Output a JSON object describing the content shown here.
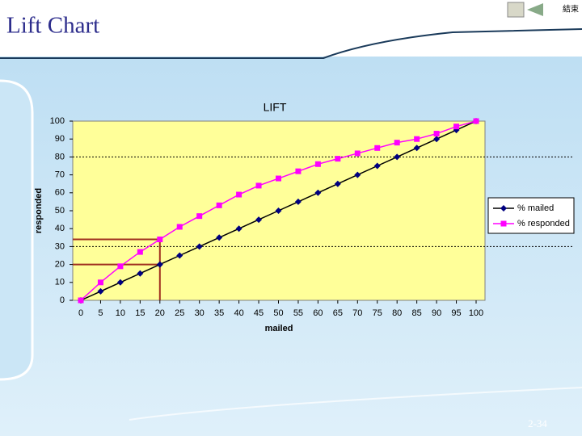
{
  "slide": {
    "title": "Lift Chart",
    "page": "2-34",
    "button": "結束"
  },
  "chart_data": {
    "type": "line",
    "title": "LIFT",
    "x_label": "mailed",
    "y_label": "responded",
    "x": [
      0,
      5,
      10,
      15,
      20,
      25,
      30,
      35,
      40,
      45,
      50,
      55,
      60,
      65,
      70,
      75,
      80,
      85,
      90,
      95,
      100
    ],
    "series": [
      {
        "name": "% mailed",
        "color": "#000080",
        "marker": "diamond",
        "values": [
          0,
          5,
          10,
          15,
          20,
          25,
          30,
          35,
          40,
          45,
          50,
          55,
          60,
          65,
          70,
          75,
          80,
          85,
          90,
          95,
          100
        ]
      },
      {
        "name": "% responded",
        "color": "#ff00ff",
        "marker": "square",
        "values": [
          0,
          10,
          19,
          27,
          34,
          41,
          47,
          53,
          59,
          64,
          68,
          72,
          76,
          79,
          82,
          85,
          88,
          90,
          93,
          97,
          100
        ]
      }
    ],
    "xlim": [
      0,
      100
    ],
    "xticks": [
      0,
      5,
      10,
      15,
      20,
      25,
      30,
      35,
      40,
      45,
      50,
      55,
      60,
      65,
      70,
      75,
      80,
      85,
      90,
      95,
      100
    ],
    "ylim": [
      0,
      100
    ],
    "yticks": [
      0,
      10,
      20,
      30,
      40,
      50,
      60,
      70,
      80,
      90,
      100
    ],
    "reference_lines": [
      30,
      80
    ],
    "guide": {
      "x": 20,
      "y": [
        20,
        34
      ],
      "color": "#a03020"
    },
    "plot_color": "#ffff99",
    "legend": "right"
  }
}
